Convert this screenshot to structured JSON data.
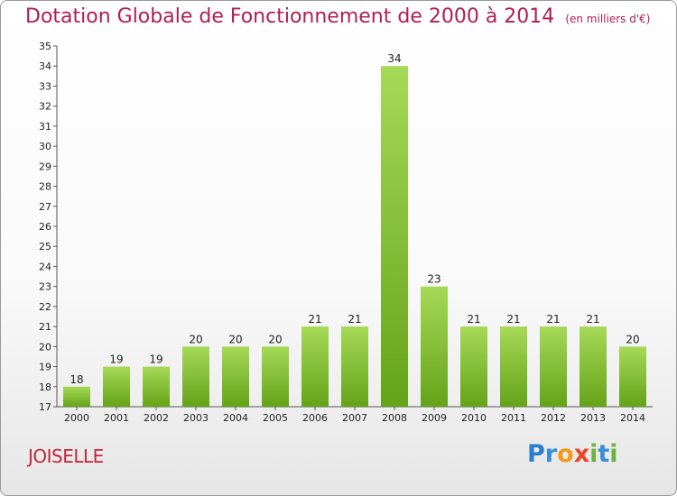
{
  "header": {
    "title": "Dotation Globale de Fonctionnement de 2000 à 2014",
    "unit_note": "(en milliers d'€)"
  },
  "commune": {
    "name": "JOISELLE"
  },
  "logo": {
    "text": "Proxiti",
    "letters": [
      "P",
      "r",
      "o",
      "x",
      "i",
      "t",
      "i"
    ]
  },
  "colors": {
    "title": "#b01e52",
    "bar_light": "#a6d957",
    "bar_dark": "#64a318",
    "logo": [
      "#2b7fc8",
      "#3a8fd6",
      "#f19a1b",
      "#e8472a",
      "#6db33f",
      "#3a8fd6",
      "#6db33f"
    ]
  },
  "chart_data": {
    "type": "bar",
    "title": "Dotation Globale de Fonctionnement de 2000 à 2014",
    "subtitle": "(en milliers d'€)",
    "xlabel": "",
    "ylabel": "",
    "categories": [
      "2000",
      "2001",
      "2002",
      "2003",
      "2004",
      "2005",
      "2006",
      "2007",
      "2008",
      "2009",
      "2010",
      "2011",
      "2012",
      "2013",
      "2014"
    ],
    "values": [
      18,
      19,
      19,
      20,
      20,
      20,
      21,
      21,
      34,
      23,
      21,
      21,
      21,
      21,
      20
    ],
    "ylim": [
      17,
      35
    ],
    "yticks": [
      17,
      18,
      19,
      20,
      21,
      22,
      23,
      24,
      25,
      26,
      27,
      28,
      29,
      30,
      31,
      32,
      33,
      34,
      35
    ],
    "grid": false,
    "data_labels": true
  }
}
